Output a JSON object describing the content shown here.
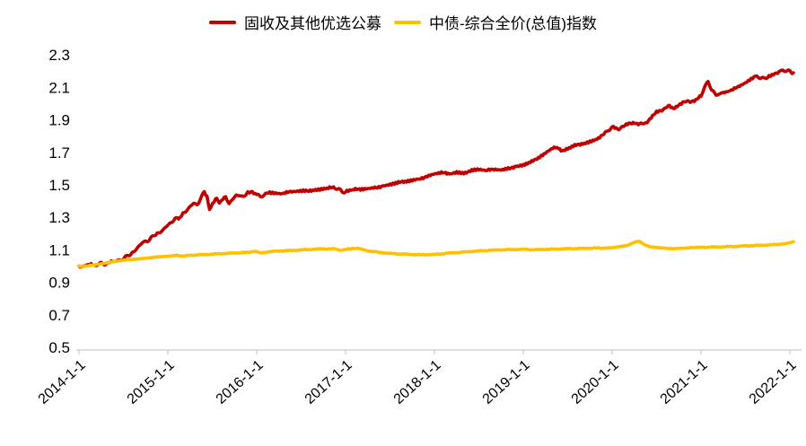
{
  "chart_data": {
    "type": "line",
    "title": "",
    "xlabel": "",
    "ylabel": "",
    "grid": false,
    "legend_position": "top-center",
    "background_color": "#ffffff",
    "axis_color": "#bfbfbf",
    "tick_label_color": "#000000",
    "ylim": [
      0.5,
      2.3
    ],
    "y_tick_labels": [
      "0.5",
      "0.7",
      "0.9",
      "1.1",
      "1.3",
      "1.5",
      "1.7",
      "1.9",
      "2.1",
      "2.3"
    ],
    "x_tick_labels": [
      "2014-1-1",
      "2015-1-1",
      "2016-1-1",
      "2017-1-1",
      "2018-1-1",
      "2019-1-1",
      "2020-1-1",
      "2021-1-1",
      "2022-1-1"
    ],
    "x_tick_years": [
      2014,
      2015,
      2016,
      2017,
      2018,
      2019,
      2020,
      2021,
      2022
    ],
    "series": [
      {
        "name": "固收及其他优选公募",
        "color": "#C00000",
        "width": 3.6,
        "noise": 0.009,
        "points": [
          [
            2014.0,
            1.0
          ],
          [
            2014.04,
            0.996
          ],
          [
            2014.08,
            1.004
          ],
          [
            2014.12,
            1.008
          ],
          [
            2014.17,
            1.005
          ],
          [
            2014.21,
            1.012
          ],
          [
            2014.25,
            1.015
          ],
          [
            2014.29,
            1.013
          ],
          [
            2014.33,
            1.02
          ],
          [
            2014.38,
            1.025
          ],
          [
            2014.42,
            1.03
          ],
          [
            2014.46,
            1.038
          ],
          [
            2014.5,
            1.047
          ],
          [
            2014.54,
            1.058
          ],
          [
            2014.58,
            1.075
          ],
          [
            2014.63,
            1.1
          ],
          [
            2014.67,
            1.12
          ],
          [
            2014.71,
            1.14
          ],
          [
            2014.75,
            1.155
          ],
          [
            2014.79,
            1.16
          ],
          [
            2014.83,
            1.18
          ],
          [
            2014.88,
            1.195
          ],
          [
            2014.92,
            1.215
          ],
          [
            2014.96,
            1.23
          ],
          [
            2015.0,
            1.25
          ],
          [
            2015.04,
            1.27
          ],
          [
            2015.08,
            1.295
          ],
          [
            2015.12,
            1.285
          ],
          [
            2015.17,
            1.32
          ],
          [
            2015.21,
            1.345
          ],
          [
            2015.25,
            1.365
          ],
          [
            2015.29,
            1.385
          ],
          [
            2015.33,
            1.38
          ],
          [
            2015.37,
            1.415
          ],
          [
            2015.41,
            1.455
          ],
          [
            2015.44,
            1.43
          ],
          [
            2015.47,
            1.355
          ],
          [
            2015.52,
            1.4
          ],
          [
            2015.55,
            1.425
          ],
          [
            2015.58,
            1.385
          ],
          [
            2015.62,
            1.415
          ],
          [
            2015.65,
            1.43
          ],
          [
            2015.69,
            1.385
          ],
          [
            2015.73,
            1.41
          ],
          [
            2015.77,
            1.435
          ],
          [
            2015.81,
            1.44
          ],
          [
            2015.85,
            1.42
          ],
          [
            2015.9,
            1.45
          ],
          [
            2015.95,
            1.455
          ],
          [
            2016.0,
            1.44
          ],
          [
            2016.04,
            1.425
          ],
          [
            2016.08,
            1.44
          ],
          [
            2016.13,
            1.455
          ],
          [
            2016.21,
            1.45
          ],
          [
            2016.29,
            1.445
          ],
          [
            2016.38,
            1.455
          ],
          [
            2016.46,
            1.46
          ],
          [
            2016.54,
            1.465
          ],
          [
            2016.63,
            1.468
          ],
          [
            2016.71,
            1.472
          ],
          [
            2016.79,
            1.478
          ],
          [
            2016.88,
            1.482
          ],
          [
            2016.92,
            1.475
          ],
          [
            2016.96,
            1.455
          ],
          [
            2017.0,
            1.46
          ],
          [
            2017.08,
            1.468
          ],
          [
            2017.17,
            1.472
          ],
          [
            2017.25,
            1.478
          ],
          [
            2017.33,
            1.485
          ],
          [
            2017.42,
            1.492
          ],
          [
            2017.5,
            1.5
          ],
          [
            2017.58,
            1.51
          ],
          [
            2017.67,
            1.52
          ],
          [
            2017.75,
            1.53
          ],
          [
            2017.83,
            1.54
          ],
          [
            2017.92,
            1.552
          ],
          [
            2018.0,
            1.565
          ],
          [
            2018.08,
            1.572
          ],
          [
            2018.17,
            1.568
          ],
          [
            2018.25,
            1.58
          ],
          [
            2018.33,
            1.575
          ],
          [
            2018.42,
            1.588
          ],
          [
            2018.5,
            1.592
          ],
          [
            2018.58,
            1.585
          ],
          [
            2018.67,
            1.598
          ],
          [
            2018.75,
            1.595
          ],
          [
            2018.83,
            1.605
          ],
          [
            2018.92,
            1.61
          ],
          [
            2019.0,
            1.618
          ],
          [
            2019.08,
            1.635
          ],
          [
            2019.17,
            1.668
          ],
          [
            2019.25,
            1.7
          ],
          [
            2019.33,
            1.73
          ],
          [
            2019.38,
            1.735
          ],
          [
            2019.44,
            1.71
          ],
          [
            2019.5,
            1.718
          ],
          [
            2019.58,
            1.74
          ],
          [
            2019.67,
            1.755
          ],
          [
            2019.75,
            1.77
          ],
          [
            2019.83,
            1.785
          ],
          [
            2019.92,
            1.815
          ],
          [
            2019.96,
            1.84
          ],
          [
            2020.0,
            1.855
          ],
          [
            2020.06,
            1.845
          ],
          [
            2020.13,
            1.858
          ],
          [
            2020.19,
            1.878
          ],
          [
            2020.25,
            1.885
          ],
          [
            2020.31,
            1.872
          ],
          [
            2020.38,
            1.882
          ],
          [
            2020.44,
            1.915
          ],
          [
            2020.5,
            1.945
          ],
          [
            2020.56,
            1.96
          ],
          [
            2020.63,
            1.985
          ],
          [
            2020.69,
            1.97
          ],
          [
            2020.75,
            1.995
          ],
          [
            2020.81,
            2.01
          ],
          [
            2020.88,
            2.015
          ],
          [
            2020.94,
            2.02
          ],
          [
            2021.0,
            2.045
          ],
          [
            2021.04,
            2.105
          ],
          [
            2021.08,
            2.13
          ],
          [
            2021.12,
            2.09
          ],
          [
            2021.17,
            2.06
          ],
          [
            2021.21,
            2.055
          ],
          [
            2021.25,
            2.07
          ],
          [
            2021.33,
            2.082
          ],
          [
            2021.42,
            2.1
          ],
          [
            2021.5,
            2.125
          ],
          [
            2021.58,
            2.155
          ],
          [
            2021.63,
            2.17
          ],
          [
            2021.67,
            2.158
          ],
          [
            2021.71,
            2.152
          ],
          [
            2021.75,
            2.168
          ],
          [
            2021.83,
            2.185
          ],
          [
            2021.88,
            2.198
          ],
          [
            2021.92,
            2.208
          ],
          [
            2021.96,
            2.2
          ],
          [
            2022.0,
            2.198
          ],
          [
            2022.04,
            2.19
          ]
        ]
      },
      {
        "name": "中债-综合全价(总值)指数",
        "color": "#FFC000",
        "width": 3.6,
        "noise": 0.0028,
        "points": [
          [
            2014.0,
            1.0
          ],
          [
            2014.06,
            0.997
          ],
          [
            2014.13,
            1.005
          ],
          [
            2014.21,
            1.012
          ],
          [
            2014.29,
            1.018
          ],
          [
            2014.38,
            1.026
          ],
          [
            2014.46,
            1.032
          ],
          [
            2014.54,
            1.038
          ],
          [
            2014.63,
            1.043
          ],
          [
            2014.71,
            1.047
          ],
          [
            2014.79,
            1.051
          ],
          [
            2014.88,
            1.055
          ],
          [
            2014.96,
            1.058
          ],
          [
            2015.04,
            1.062
          ],
          [
            2015.1,
            1.068
          ],
          [
            2015.15,
            1.062
          ],
          [
            2015.25,
            1.066
          ],
          [
            2015.38,
            1.07
          ],
          [
            2015.5,
            1.074
          ],
          [
            2015.63,
            1.077
          ],
          [
            2015.75,
            1.08
          ],
          [
            2015.88,
            1.084
          ],
          [
            2015.98,
            1.09
          ],
          [
            2016.04,
            1.082
          ],
          [
            2016.13,
            1.088
          ],
          [
            2016.25,
            1.092
          ],
          [
            2016.38,
            1.096
          ],
          [
            2016.5,
            1.1
          ],
          [
            2016.63,
            1.103
          ],
          [
            2016.75,
            1.106
          ],
          [
            2016.88,
            1.106
          ],
          [
            2016.94,
            1.098
          ],
          [
            2017.0,
            1.102
          ],
          [
            2017.1,
            1.11
          ],
          [
            2017.17,
            1.106
          ],
          [
            2017.25,
            1.094
          ],
          [
            2017.38,
            1.085
          ],
          [
            2017.5,
            1.078
          ],
          [
            2017.63,
            1.074
          ],
          [
            2017.75,
            1.071
          ],
          [
            2017.88,
            1.07
          ],
          [
            2018.0,
            1.072
          ],
          [
            2018.13,
            1.078
          ],
          [
            2018.25,
            1.083
          ],
          [
            2018.38,
            1.089
          ],
          [
            2018.5,
            1.093
          ],
          [
            2018.63,
            1.097
          ],
          [
            2018.75,
            1.1
          ],
          [
            2018.88,
            1.102
          ],
          [
            2019.0,
            1.103
          ],
          [
            2019.13,
            1.1
          ],
          [
            2019.25,
            1.103
          ],
          [
            2019.38,
            1.105
          ],
          [
            2019.5,
            1.107
          ],
          [
            2019.63,
            1.108
          ],
          [
            2019.75,
            1.11
          ],
          [
            2019.88,
            1.111
          ],
          [
            2020.0,
            1.112
          ],
          [
            2020.08,
            1.118
          ],
          [
            2020.17,
            1.128
          ],
          [
            2020.25,
            1.148
          ],
          [
            2020.3,
            1.155
          ],
          [
            2020.35,
            1.138
          ],
          [
            2020.42,
            1.118
          ],
          [
            2020.5,
            1.113
          ],
          [
            2020.58,
            1.11
          ],
          [
            2020.67,
            1.108
          ],
          [
            2020.75,
            1.11
          ],
          [
            2020.83,
            1.112
          ],
          [
            2020.92,
            1.113
          ],
          [
            2021.0,
            1.115
          ],
          [
            2021.13,
            1.117
          ],
          [
            2021.25,
            1.119
          ],
          [
            2021.38,
            1.121
          ],
          [
            2021.5,
            1.124
          ],
          [
            2021.63,
            1.127
          ],
          [
            2021.75,
            1.13
          ],
          [
            2021.88,
            1.134
          ],
          [
            2021.96,
            1.14
          ],
          [
            2022.04,
            1.15
          ]
        ]
      }
    ]
  }
}
